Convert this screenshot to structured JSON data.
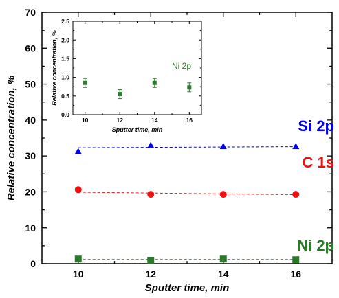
{
  "chart_data": [
    {
      "type": "scatter",
      "xlabel": "Sputter time, min",
      "ylabel": "Relative concentration, %",
      "xlim": [
        9,
        17
      ],
      "ylim": [
        0,
        70
      ],
      "xticks": [
        10,
        12,
        14,
        16
      ],
      "yticks": [
        0,
        10,
        20,
        30,
        40,
        50,
        60,
        70
      ],
      "grid": false,
      "series": [
        {
          "name": "Si 2p",
          "color": "#0000ee",
          "marker": "triangle",
          "x": [
            10,
            12,
            14,
            16
          ],
          "y": [
            31.3,
            33.0,
            32.7,
            32.7
          ],
          "trend": [
            32.3,
            32.6
          ]
        },
        {
          "name": "C 1s",
          "color": "#ee1111",
          "marker": "circle",
          "x": [
            10,
            12,
            14,
            16
          ],
          "y": [
            20.6,
            19.3,
            19.3,
            19.3
          ],
          "trend": [
            19.9,
            19.2
          ]
        },
        {
          "name": "Ni 2p",
          "color": "#2a7a2a",
          "marker": "square",
          "x": [
            10,
            12,
            14,
            16
          ],
          "y": [
            1.3,
            0.9,
            1.3,
            1.1
          ],
          "trend": [
            1.2,
            1.2
          ]
        }
      ]
    },
    {
      "type": "scatter",
      "xlabel": "Sputter time, min",
      "ylabel": "Relative concentration, %",
      "xlim": [
        9.3,
        16.7
      ],
      "ylim": [
        0,
        2.5
      ],
      "xticks": [
        10,
        12,
        14,
        16
      ],
      "yticks": [
        0.0,
        0.5,
        1.0,
        1.5,
        2.0,
        2.5
      ],
      "grid": false,
      "series": [
        {
          "name": "Ni 2p",
          "color": "#2a7a2a",
          "marker": "square",
          "x": [
            10,
            12,
            14,
            16
          ],
          "y": [
            0.85,
            0.55,
            0.85,
            0.73
          ],
          "err": [
            0.12,
            0.12,
            0.12,
            0.12
          ]
        }
      ]
    }
  ]
}
